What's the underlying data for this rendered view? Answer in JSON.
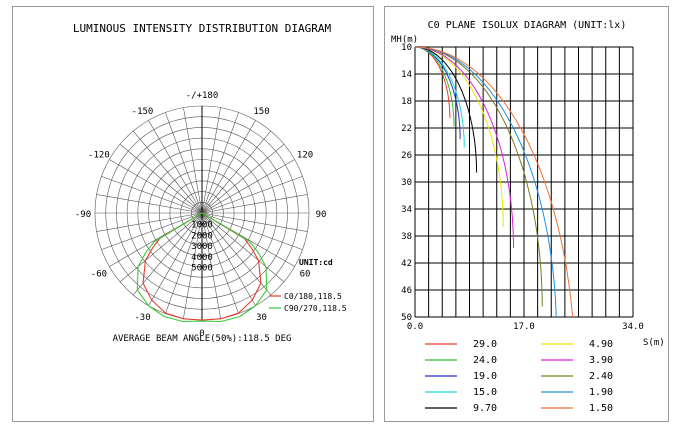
{
  "chart_data": [
    {
      "type": "polar",
      "title": "LUMINOUS INTENSITY DISTRIBUTION DIAGRAM",
      "angle_labels": [
        "-/+180",
        "150",
        "120",
        "90",
        "60",
        "30",
        "0",
        "-30",
        "-60",
        "-90",
        "-120",
        "-150"
      ],
      "radial_ticks": [
        1000,
        2000,
        3000,
        4000,
        5000
      ],
      "radial_max": 5000,
      "unit_label": "UNIT:cd",
      "series": [
        {
          "name": "C0/180,118.5",
          "color": "#e83a2e",
          "angles": [
            0,
            10,
            20,
            30,
            40,
            50,
            55,
            59,
            60,
            70,
            90
          ],
          "values": [
            5000,
            5020,
            4980,
            4700,
            4280,
            3450,
            2800,
            2300,
            0,
            0,
            0
          ]
        },
        {
          "name": "C90/270,118.5",
          "color": "#3cc83c",
          "angles": [
            0,
            10,
            20,
            30,
            40,
            50,
            55,
            59,
            60,
            70,
            90
          ],
          "values": [
            5050,
            5150,
            5150,
            5000,
            4700,
            3900,
            3200,
            2600,
            400,
            0,
            0
          ]
        }
      ],
      "footer": "AVERAGE BEAM ANGLE(50%):118.5 DEG"
    },
    {
      "type": "contour",
      "title": "C0 PLANE ISOLUX DIAGRAM (UNIT:lx)",
      "ylabel": "MH(m)",
      "xlabel": "S(m)",
      "y_ticks": [
        10,
        14,
        18,
        22,
        26,
        30,
        34,
        38,
        42,
        46,
        50
      ],
      "x_ticks": [
        "0.0",
        "17.0",
        "34.0"
      ],
      "xlim": [
        0,
        34
      ],
      "ylim": [
        10,
        50
      ],
      "levels": [
        {
          "value": "29.0",
          "color": "#e83a2e",
          "s": 1.7
        },
        {
          "value": "24.0",
          "color": "#2ebd2e",
          "s": 1.9
        },
        {
          "value": "19.0",
          "color": "#2a2ad2",
          "s": 2.2
        },
        {
          "value": "15.0",
          "color": "#20d8d8",
          "s": 2.4
        },
        {
          "value": "9.70",
          "color": "#000000",
          "s": 3.0
        },
        {
          "value": "4.90",
          "color": "#e8e800",
          "s": 4.3
        },
        {
          "value": "3.90",
          "color": "#d820d8",
          "s": 4.8
        },
        {
          "value": "2.40",
          "color": "#7a7a20",
          "s": 6.2
        },
        {
          "value": "1.90",
          "color": "#1e90e0",
          "s": 6.9
        },
        {
          "value": "1.50",
          "color": "#f0703a",
          "s": 7.8
        }
      ]
    }
  ]
}
